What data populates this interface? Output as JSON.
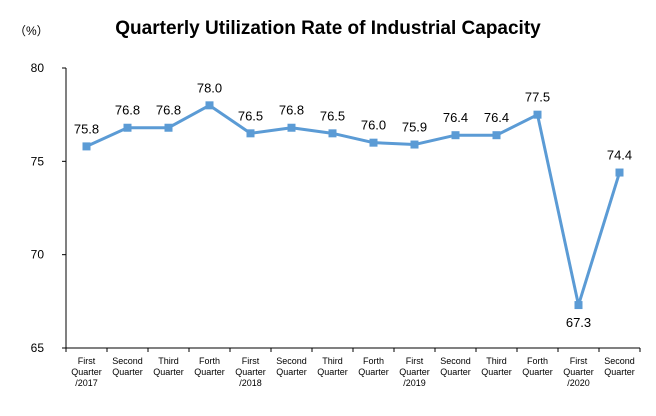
{
  "chart_data": {
    "type": "line",
    "title": "Quarterly Utilization Rate of Industrial Capacity",
    "y_unit": "（%）",
    "categories": [
      [
        "First",
        "Quarter",
        "/2017"
      ],
      [
        "Second",
        "Quarter"
      ],
      [
        "Third",
        "Quarter"
      ],
      [
        "Forth",
        "Quarter"
      ],
      [
        "First",
        "Quarter",
        "/2018"
      ],
      [
        "Second",
        "Quarter"
      ],
      [
        "Third",
        "Quarter"
      ],
      [
        "Forth",
        "Quarter"
      ],
      [
        "First",
        "Quarter",
        "/2019"
      ],
      [
        "Second",
        "Quarter"
      ],
      [
        "Third",
        "Quarter"
      ],
      [
        "Forth",
        "Quarter"
      ],
      [
        "First",
        "Quarter",
        "/2020"
      ],
      [
        "Second",
        "Quarter"
      ]
    ],
    "values": [
      75.8,
      76.8,
      76.8,
      78.0,
      76.5,
      76.8,
      76.5,
      76.0,
      75.9,
      76.4,
      76.4,
      77.5,
      67.3,
      74.4
    ],
    "data_labels": [
      "75.8",
      "76.8",
      "76.8",
      "78.0",
      "76.5",
      "76.8",
      "76.5",
      "76.0",
      "75.9",
      "76.4",
      "76.4",
      "77.5",
      "67.3",
      "74.4"
    ],
    "ylim": [
      65,
      80
    ],
    "yticks": [
      65,
      70,
      75,
      80
    ],
    "grid": false,
    "legend": "none",
    "line_color": "#5B9BD5"
  }
}
